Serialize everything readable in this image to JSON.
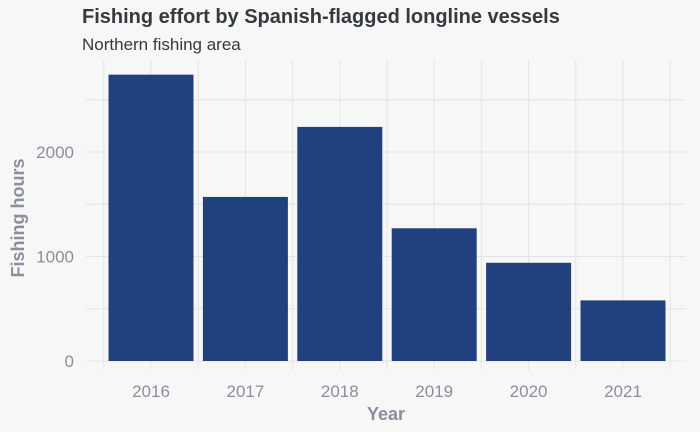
{
  "chart_data": {
    "type": "bar",
    "title": "Fishing effort by Spanish-flagged longline vessels",
    "subtitle": "Northern fishing area",
    "xlabel": "Year",
    "ylabel": "Fishing hours",
    "categories": [
      "2016",
      "2017",
      "2018",
      "2019",
      "2020",
      "2021"
    ],
    "values": [
      2740,
      1570,
      2240,
      1270,
      940,
      580
    ],
    "ylim": [
      0,
      2850
    ],
    "yticks": [
      0,
      1000,
      2000
    ],
    "grid": true,
    "legend": "none",
    "bar_color": "#21417e",
    "grid_color": "#e4e4e4"
  }
}
